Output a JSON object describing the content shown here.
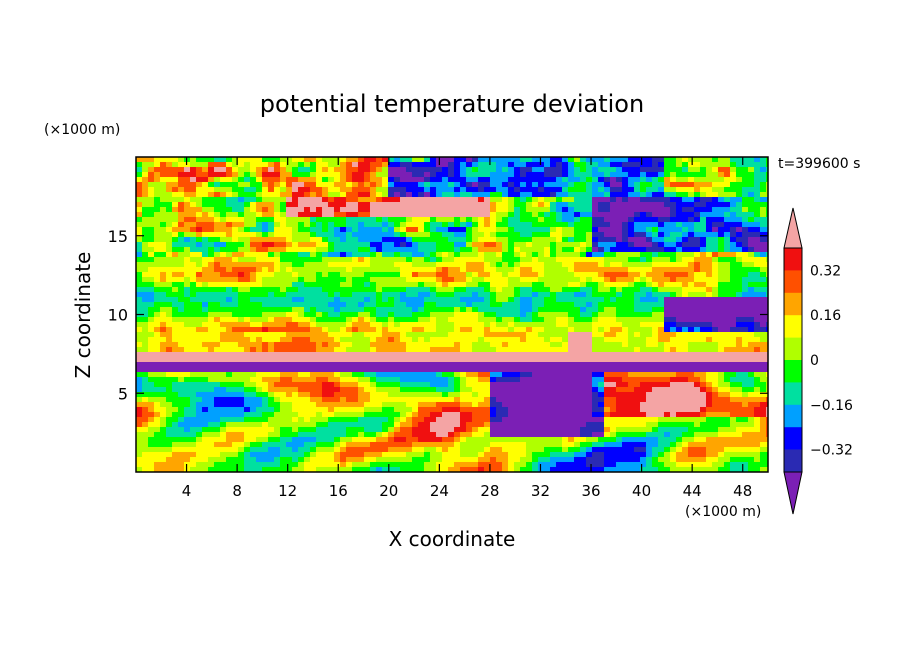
{
  "chart_data": {
    "type": "heatmap",
    "title": "potential temperature deviation",
    "xlabel": "X coordinate",
    "ylabel": "Z coordinate",
    "x_unit": "(×1000 m)",
    "y_unit": "(×1000 m)",
    "time_label": "t=399600 s",
    "xlim": [
      0,
      50
    ],
    "ylim": [
      0,
      20
    ],
    "x_ticks": [
      4,
      8,
      12,
      16,
      20,
      24,
      28,
      32,
      36,
      40,
      44,
      48
    ],
    "y_ticks": [
      5,
      10,
      15
    ],
    "colorbar": {
      "levels": [
        -0.4,
        -0.32,
        -0.24,
        -0.16,
        -0.08,
        0,
        0.08,
        0.16,
        0.24,
        0.32,
        0.4
      ],
      "tick_values": [
        0.32,
        0.16,
        0,
        -0.16,
        -0.32
      ],
      "tick_labels": [
        "0.32",
        "0.16",
        "0",
        "−0.16",
        "−0.32"
      ],
      "colors": [
        "#7b1fb5",
        "#2a2ab3",
        "#0000ff",
        "#00a0ff",
        "#00e0a0",
        "#00ff00",
        "#b0ff00",
        "#ffff00",
        "#ffa500",
        "#ff5000",
        "#f01010",
        "#f4a4a4"
      ]
    }
  },
  "colors": {
    "frame": "#000000",
    "background": "#ffffff"
  }
}
